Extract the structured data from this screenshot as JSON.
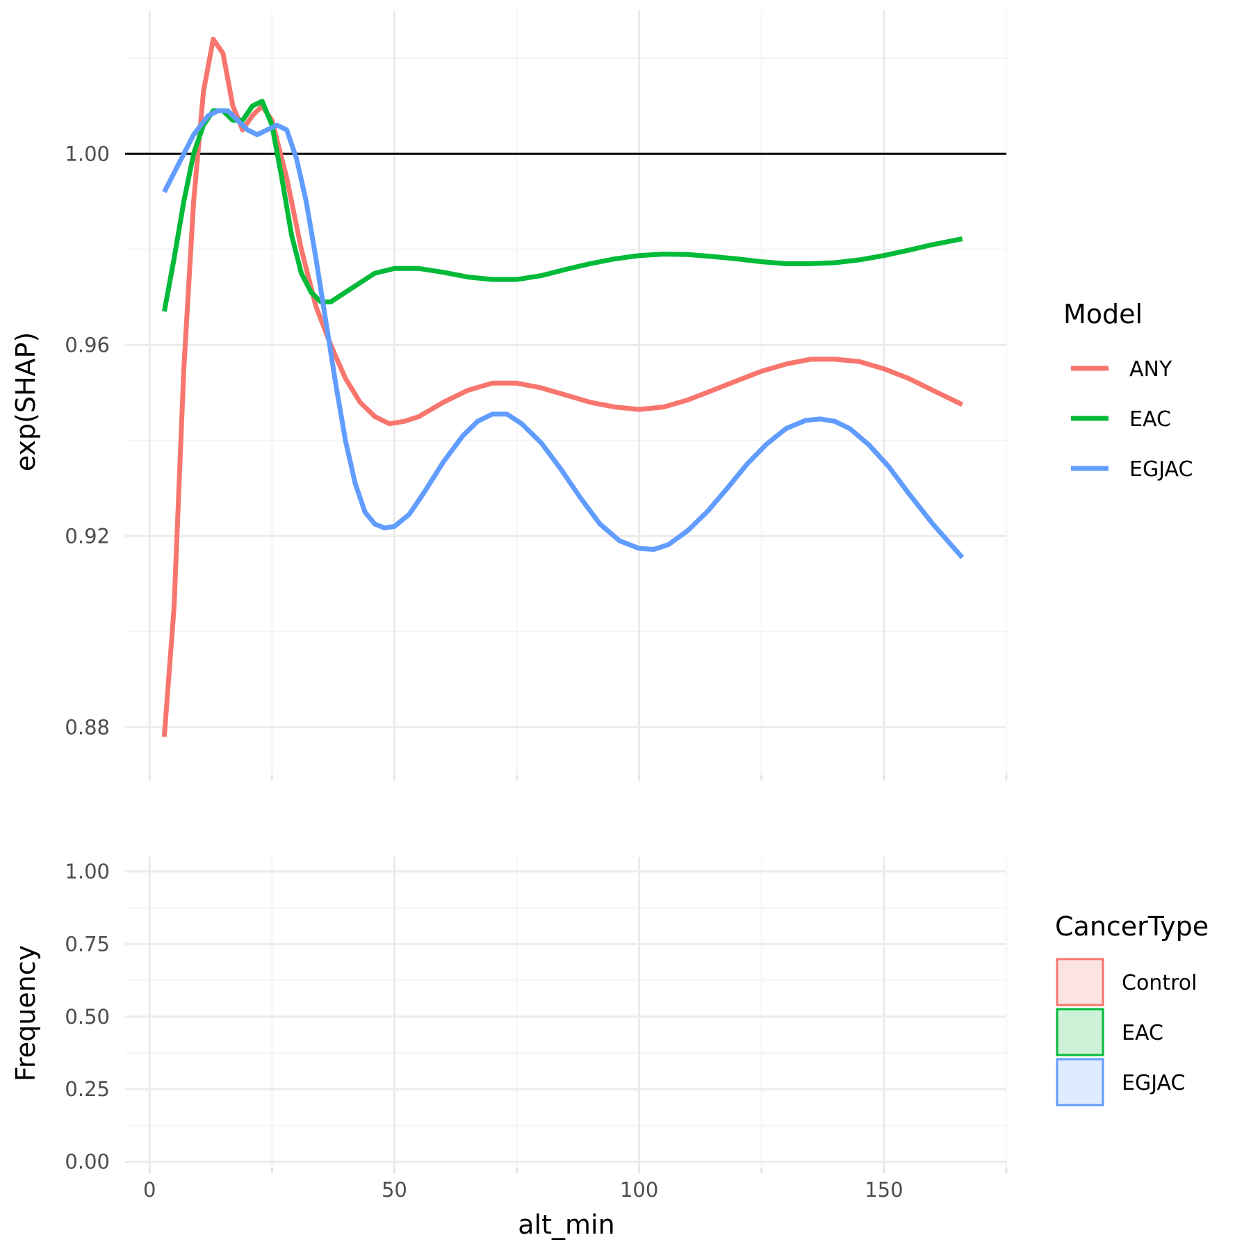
{
  "chart_data": [
    {
      "type": "line",
      "panel": "top",
      "xlabel": "",
      "ylabel": "exp(SHAP)",
      "xlim": [
        -5,
        175
      ],
      "ylim": [
        0.87,
        1.03
      ],
      "x_grid_major": [
        0,
        50,
        100,
        150
      ],
      "x_grid_minor": [
        25,
        75,
        125,
        175
      ],
      "yticks": [
        0.88,
        0.92,
        0.96,
        1.0
      ],
      "ytick_labels": [
        "0.88",
        "0.92",
        "0.96",
        "1.00"
      ],
      "y_grid_minor": [
        0.9,
        0.94,
        0.98,
        1.02
      ],
      "reference_line": 1.0,
      "grid": true,
      "legend_title": "Model",
      "legend_position": "right",
      "series": [
        {
          "name": "ANY",
          "color": "#F8766D",
          "points": [
            [
              3,
              0.878
            ],
            [
              5,
              0.905
            ],
            [
              7,
              0.955
            ],
            [
              9,
              0.99
            ],
            [
              11,
              1.013
            ],
            [
              13,
              1.024
            ],
            [
              15,
              1.021
            ],
            [
              17,
              1.01
            ],
            [
              19,
              1.005
            ],
            [
              21,
              1.008
            ],
            [
              23,
              1.01
            ],
            [
              25,
              1.007
            ],
            [
              28,
              0.995
            ],
            [
              31,
              0.98
            ],
            [
              34,
              0.968
            ],
            [
              37,
              0.96
            ],
            [
              40,
              0.953
            ],
            [
              43,
              0.948
            ],
            [
              46,
              0.945
            ],
            [
              49,
              0.9435
            ],
            [
              52,
              0.944
            ],
            [
              55,
              0.945
            ],
            [
              60,
              0.948
            ],
            [
              65,
              0.9505
            ],
            [
              70,
              0.952
            ],
            [
              75,
              0.952
            ],
            [
              80,
              0.951
            ],
            [
              85,
              0.9495
            ],
            [
              90,
              0.948
            ],
            [
              95,
              0.947
            ],
            [
              100,
              0.9465
            ],
            [
              105,
              0.947
            ],
            [
              110,
              0.9485
            ],
            [
              115,
              0.9505
            ],
            [
              120,
              0.9525
            ],
            [
              125,
              0.9545
            ],
            [
              130,
              0.956
            ],
            [
              135,
              0.957
            ],
            [
              140,
              0.957
            ],
            [
              145,
              0.9565
            ],
            [
              150,
              0.955
            ],
            [
              155,
              0.953
            ],
            [
              160,
              0.9505
            ],
            [
              166,
              0.9475
            ]
          ]
        },
        {
          "name": "EAC",
          "color": "#00BA38",
          "points": [
            [
              3,
              0.967
            ],
            [
              5,
              0.978
            ],
            [
              7,
              0.99
            ],
            [
              9,
              1.0
            ],
            [
              11,
              1.006
            ],
            [
              13,
              1.009
            ],
            [
              15,
              1.009
            ],
            [
              17,
              1.007
            ],
            [
              19,
              1.007
            ],
            [
              21,
              1.01
            ],
            [
              23,
              1.011
            ],
            [
              25,
              1.006
            ],
            [
              27,
              0.995
            ],
            [
              29,
              0.983
            ],
            [
              31,
              0.975
            ],
            [
              33,
              0.971
            ],
            [
              35,
              0.969
            ],
            [
              37,
              0.969
            ],
            [
              40,
              0.971
            ],
            [
              43,
              0.973
            ],
            [
              46,
              0.975
            ],
            [
              50,
              0.976
            ],
            [
              55,
              0.976
            ],
            [
              60,
              0.9752
            ],
            [
              65,
              0.9742
            ],
            [
              70,
              0.9737
            ],
            [
              75,
              0.9737
            ],
            [
              80,
              0.9745
            ],
            [
              85,
              0.9758
            ],
            [
              90,
              0.977
            ],
            [
              95,
              0.978
            ],
            [
              100,
              0.9787
            ],
            [
              105,
              0.979
            ],
            [
              110,
              0.9789
            ],
            [
              115,
              0.9785
            ],
            [
              120,
              0.978
            ],
            [
              125,
              0.9774
            ],
            [
              130,
              0.977
            ],
            [
              135,
              0.977
            ],
            [
              140,
              0.9772
            ],
            [
              145,
              0.9778
            ],
            [
              150,
              0.9787
            ],
            [
              155,
              0.9798
            ],
            [
              160,
              0.981
            ],
            [
              166,
              0.9822
            ]
          ]
        },
        {
          "name": "EGJAC",
          "color": "#619CFF",
          "points": [
            [
              3,
              0.992
            ],
            [
              6,
              0.998
            ],
            [
              9,
              1.004
            ],
            [
              12,
              1.008
            ],
            [
              14,
              1.009
            ],
            [
              16,
              1.009
            ],
            [
              18,
              1.007
            ],
            [
              20,
              1.005
            ],
            [
              22,
              1.004
            ],
            [
              24,
              1.005
            ],
            [
              26,
              1.006
            ],
            [
              28,
              1.005
            ],
            [
              30,
              0.999
            ],
            [
              32,
              0.99
            ],
            [
              34,
              0.978
            ],
            [
              36,
              0.965
            ],
            [
              38,
              0.952
            ],
            [
              40,
              0.94
            ],
            [
              42,
              0.931
            ],
            [
              44,
              0.925
            ],
            [
              46,
              0.9225
            ],
            [
              48,
              0.9217
            ],
            [
              50,
              0.922
            ],
            [
              53,
              0.9245
            ],
            [
              56,
              0.929
            ],
            [
              60,
              0.9355
            ],
            [
              64,
              0.941
            ],
            [
              67,
              0.944
            ],
            [
              70,
              0.9455
            ],
            [
              73,
              0.9455
            ],
            [
              76,
              0.9435
            ],
            [
              80,
              0.9395
            ],
            [
              84,
              0.934
            ],
            [
              88,
              0.928
            ],
            [
              92,
              0.9225
            ],
            [
              96,
              0.919
            ],
            [
              100,
              0.9174
            ],
            [
              103,
              0.9172
            ],
            [
              106,
              0.9182
            ],
            [
              110,
              0.9212
            ],
            [
              114,
              0.9252
            ],
            [
              118,
              0.93
            ],
            [
              122,
              0.935
            ],
            [
              126,
              0.9392
            ],
            [
              130,
              0.9425
            ],
            [
              134,
              0.9442
            ],
            [
              137,
              0.9445
            ],
            [
              140,
              0.944
            ],
            [
              143,
              0.9425
            ],
            [
              147,
              0.939
            ],
            [
              151,
              0.9345
            ],
            [
              155,
              0.929
            ],
            [
              160,
              0.9225
            ],
            [
              166,
              0.9155
            ]
          ]
        }
      ]
    },
    {
      "type": "area",
      "panel": "bottom",
      "xlabel": "alt_min",
      "ylabel": "Frequency",
      "xlim": [
        -5,
        175
      ],
      "ylim": [
        -0.02,
        1.05
      ],
      "xticks": [
        0,
        50,
        100,
        150
      ],
      "xtick_labels": [
        "0",
        "50",
        "100",
        "150"
      ],
      "x_grid_minor": [
        25,
        75,
        125,
        175
      ],
      "yticks": [
        0.0,
        0.25,
        0.5,
        0.75,
        1.0
      ],
      "ytick_labels": [
        "0.00",
        "0.25",
        "0.50",
        "0.75",
        "1.00"
      ],
      "y_grid_minor": [
        0.125,
        0.375,
        0.625,
        0.875
      ],
      "grid": true,
      "legend_title": "CancerType",
      "legend_position": "right",
      "series": [
        {
          "name": "Control",
          "color": "#F8766D",
          "fill": "#FDE4E2"
        },
        {
          "name": "EAC",
          "color": "#00BA38",
          "fill": "#CCF1D7"
        },
        {
          "name": "EGJAC",
          "color": "#619CFF",
          "fill": "#DFEBFF"
        }
      ]
    }
  ]
}
